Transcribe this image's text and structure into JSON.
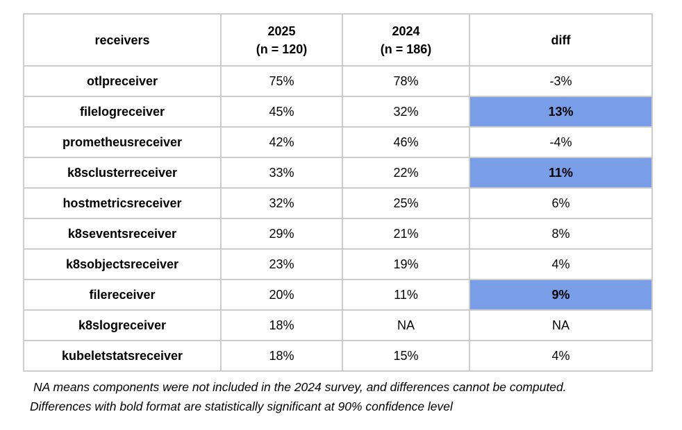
{
  "colors": {
    "highlight": "#7a9de8",
    "border": "#cccccc",
    "text": "#000000"
  },
  "chart_data": {
    "type": "table",
    "title": "",
    "columns": [
      {
        "label": "receivers",
        "sublabel": ""
      },
      {
        "label": "2025",
        "sublabel": "(n = 120)"
      },
      {
        "label": "2024",
        "sublabel": "(n = 186)"
      },
      {
        "label": "diff",
        "sublabel": ""
      }
    ],
    "rows": [
      {
        "receiver": "otlpreceiver",
        "pct_2025": "75%",
        "pct_2024": "78%",
        "diff": "-3%",
        "significant": false
      },
      {
        "receiver": "filelogreceiver",
        "pct_2025": "45%",
        "pct_2024": "32%",
        "diff": "13%",
        "significant": true
      },
      {
        "receiver": "prometheusreceiver",
        "pct_2025": "42%",
        "pct_2024": "46%",
        "diff": "-4%",
        "significant": false
      },
      {
        "receiver": "k8sclusterreceiver",
        "pct_2025": "33%",
        "pct_2024": "22%",
        "diff": "11%",
        "significant": true
      },
      {
        "receiver": "hostmetricsreceiver",
        "pct_2025": "32%",
        "pct_2024": "25%",
        "diff": "6%",
        "significant": false
      },
      {
        "receiver": "k8seventsreceiver",
        "pct_2025": "29%",
        "pct_2024": "21%",
        "diff": "8%",
        "significant": false
      },
      {
        "receiver": "k8sobjectsreceiver",
        "pct_2025": "23%",
        "pct_2024": "19%",
        "diff": "4%",
        "significant": false
      },
      {
        "receiver": "filereceiver",
        "pct_2025": "20%",
        "pct_2024": "11%",
        "diff": "9%",
        "significant": true
      },
      {
        "receiver": "k8slogreceiver",
        "pct_2025": "18%",
        "pct_2024": "NA",
        "diff": "NA",
        "significant": false
      },
      {
        "receiver": "kubeletstatsreceiver",
        "pct_2025": "18%",
        "pct_2024": "15%",
        "diff": "4%",
        "significant": false
      }
    ],
    "highlighted_rows": [
      "filelogreceiver",
      "k8sclusterreceiver",
      "filereceiver"
    ],
    "notes": [
      "NA means components were not included in the 2024 survey, and differences cannot be computed.",
      "Differences with bold format are statistically significant at 90% confidence level"
    ]
  }
}
